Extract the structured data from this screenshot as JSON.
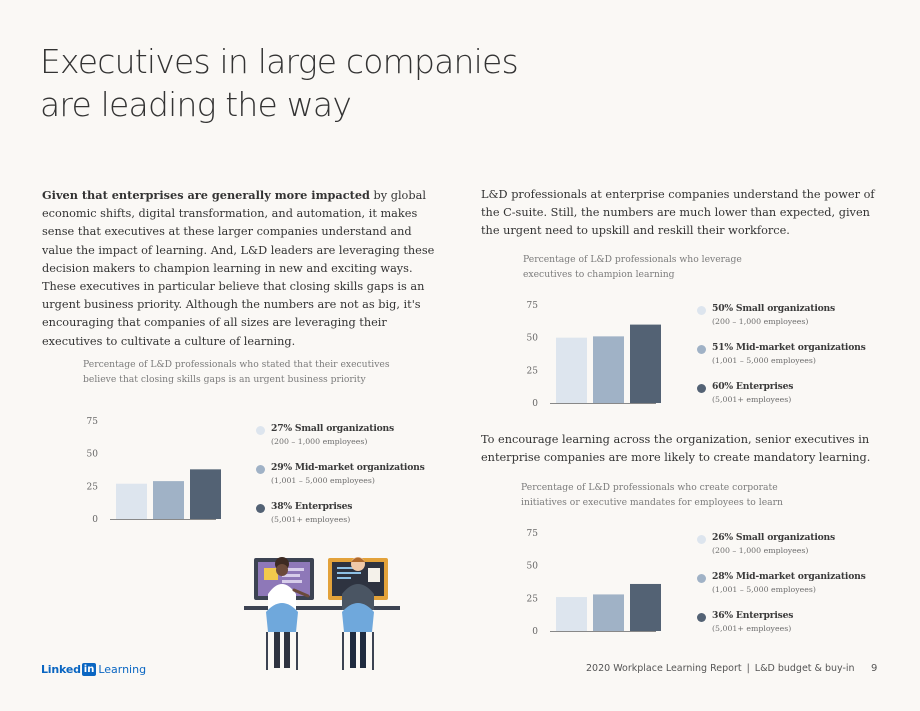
{
  "page": {
    "title_line1": "Executives in large companies",
    "title_line2": "are leading the way"
  },
  "left_column": {
    "lead_bold": "Given that enterprises are generally more impacted",
    "paragraph_rest": " by global economic shifts, digital transformation, and automation, it makes sense that executives at these larger companies understand and value the impact of learning. And, L&D leaders are leveraging these decision makers to champion learning in new and exciting ways. These executives in particular believe that closing skills gaps is an urgent business priority. Although the numbers are not as big, it's encouraging that companies of all sizes are leveraging their executives to cultivate a culture of learning."
  },
  "right_column": {
    "paragraph1": "L&D professionals at enterprise companies understand the power of the C-suite. Still, the numbers are much lower than expected, given the urgent need to upskill and reskill their workforce.",
    "paragraph2": "To encourage learning across the organization, senior executives in enterprise companies are more likely to create mandatory learning."
  },
  "colors": {
    "small": "#dde5ee",
    "mid": "#a0b2c6",
    "enterprise": "#536274",
    "axis": "#888888",
    "brand": "#0a66c2"
  },
  "chart_data": [
    {
      "type": "bar",
      "title": "Percentage of L&D professionals who stated that their executives believe that closing skills gaps is an urgent business priority",
      "categories": [
        "Small organizations",
        "Mid-market organizations",
        "Enterprises"
      ],
      "values": [
        27,
        29,
        38
      ],
      "ylim": [
        0,
        75
      ],
      "yticks": [
        "0",
        "25",
        "50",
        "75"
      ],
      "legend": [
        {
          "label": "27% Small organizations",
          "sub": "(200 – 1,000 employees)"
        },
        {
          "label": "29% Mid-market organizations",
          "sub": "(1,001 – 5,000 employees)"
        },
        {
          "label": "38% Enterprises",
          "sub": "(5,001+ employees)"
        }
      ]
    },
    {
      "type": "bar",
      "title": "Percentage of L&D professionals who leverage executives to champion learning",
      "categories": [
        "Small organizations",
        "Mid-market organizations",
        "Enterprises"
      ],
      "values": [
        50,
        51,
        60
      ],
      "ylim": [
        0,
        75
      ],
      "yticks": [
        "0",
        "25",
        "50",
        "75"
      ],
      "legend": [
        {
          "label": "50% Small organizations",
          "sub": "(200 – 1,000 employees)"
        },
        {
          "label": "51% Mid-market organizations",
          "sub": "(1,001 – 5,000 employees)"
        },
        {
          "label": "60% Enterprises",
          "sub": "(5,001+ employees)"
        }
      ]
    },
    {
      "type": "bar",
      "title": "Percentage of L&D professionals who create corporate initiatives or executive mandates for employees to learn",
      "categories": [
        "Small organizations",
        "Mid-market organizations",
        "Enterprises"
      ],
      "values": [
        26,
        28,
        36
      ],
      "ylim": [
        0,
        75
      ],
      "yticks": [
        "0",
        "25",
        "50",
        "75"
      ],
      "legend": [
        {
          "label": "26% Small organizations",
          "sub": "(200 – 1,000 employees)"
        },
        {
          "label": "28% Mid-market organizations",
          "sub": "(1,001 – 5,000 employees)"
        },
        {
          "label": "36% Enterprises",
          "sub": "(5,001+ employees)"
        }
      ]
    }
  ],
  "footer": {
    "logo_linked": "Linked",
    "logo_in": "in",
    "logo_learning": "Learning",
    "report": "2020 Workplace Learning Report",
    "separator": "|",
    "section": "L&D budget & buy-in",
    "page_number": "9"
  }
}
